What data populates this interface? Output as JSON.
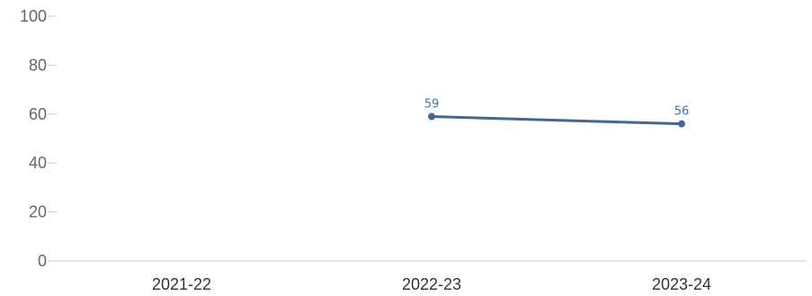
{
  "chart_data": {
    "type": "line",
    "categories": [
      "2021-22",
      "2022-23",
      "2023-24"
    ],
    "series": [
      {
        "values": [
          null,
          59,
          56
        ],
        "labels": [
          null,
          "59",
          "56"
        ]
      }
    ],
    "yticks": [
      "0",
      "20",
      "40",
      "60",
      "80",
      "100"
    ],
    "ylim": [
      0,
      100
    ],
    "grid": false,
    "line_color": "#44698f",
    "label_color": "#3a78b0"
  }
}
